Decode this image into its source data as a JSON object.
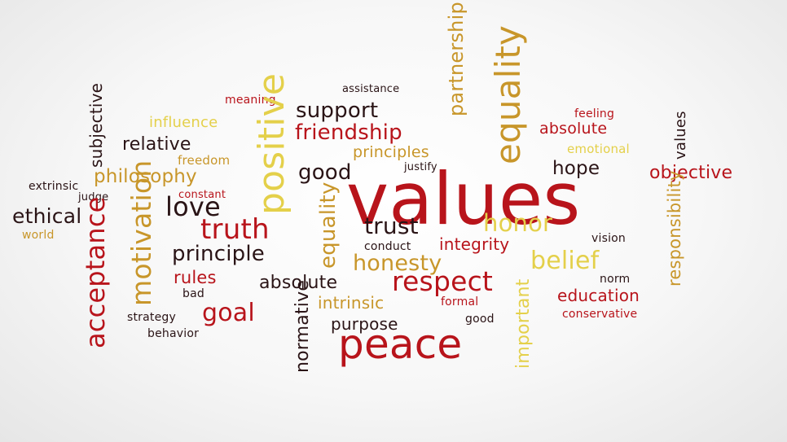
{
  "colors": {
    "dark": "#2a1416",
    "red": "#b8141b",
    "gold": "#c8962a",
    "yellow": "#e4d04a"
  },
  "words": [
    {
      "text": "values",
      "color": "red"
    },
    {
      "text": "peace",
      "color": "red"
    },
    {
      "text": "respect",
      "color": "red"
    },
    {
      "text": "truth",
      "color": "red"
    },
    {
      "text": "friendship",
      "color": "red"
    },
    {
      "text": "goal",
      "color": "red"
    },
    {
      "text": "objective",
      "color": "red"
    },
    {
      "text": "absolute",
      "color": "red"
    },
    {
      "text": "integrity",
      "color": "red"
    },
    {
      "text": "education",
      "color": "red"
    },
    {
      "text": "rules",
      "color": "red"
    },
    {
      "text": "feeling",
      "color": "red"
    },
    {
      "text": "meaning",
      "color": "red"
    },
    {
      "text": "constant",
      "color": "red"
    },
    {
      "text": "formal",
      "color": "red"
    },
    {
      "text": "conservative",
      "color": "red"
    },
    {
      "text": "acceptance",
      "color": "red"
    },
    {
      "text": "support",
      "color": "dark"
    },
    {
      "text": "relative",
      "color": "dark"
    },
    {
      "text": "good",
      "color": "dark"
    },
    {
      "text": "hope",
      "color": "dark"
    },
    {
      "text": "love",
      "color": "dark"
    },
    {
      "text": "trust",
      "color": "dark"
    },
    {
      "text": "ethical",
      "color": "dark"
    },
    {
      "text": "principle",
      "color": "dark"
    },
    {
      "text": "absolute",
      "color": "dark"
    },
    {
      "text": "purpose",
      "color": "dark"
    },
    {
      "text": "assistance",
      "color": "dark"
    },
    {
      "text": "justify",
      "color": "dark"
    },
    {
      "text": "extrinsic",
      "color": "dark"
    },
    {
      "text": "judge",
      "color": "dark"
    },
    {
      "text": "conduct",
      "color": "dark"
    },
    {
      "text": "vision",
      "color": "dark"
    },
    {
      "text": "norm",
      "color": "dark"
    },
    {
      "text": "bad",
      "color": "dark"
    },
    {
      "text": "strategy",
      "color": "dark"
    },
    {
      "text": "behavior",
      "color": "dark"
    },
    {
      "text": "good",
      "color": "dark"
    },
    {
      "text": "subjective",
      "color": "dark"
    },
    {
      "text": "normative",
      "color": "dark"
    },
    {
      "text": "values",
      "color": "dark"
    },
    {
      "text": "philosophy",
      "color": "gold"
    },
    {
      "text": "principles",
      "color": "gold"
    },
    {
      "text": "honesty",
      "color": "gold"
    },
    {
      "text": "intrinsic",
      "color": "gold"
    },
    {
      "text": "freedom",
      "color": "gold"
    },
    {
      "text": "world",
      "color": "gold"
    },
    {
      "text": "motivation",
      "color": "gold"
    },
    {
      "text": "equality",
      "color": "gold"
    },
    {
      "text": "equality",
      "color": "gold"
    },
    {
      "text": "partnership",
      "color": "gold"
    },
    {
      "text": "responsibility",
      "color": "gold"
    },
    {
      "text": "influence",
      "color": "yellow"
    },
    {
      "text": "emotional",
      "color": "yellow"
    },
    {
      "text": "honor",
      "color": "yellow"
    },
    {
      "text": "belief",
      "color": "yellow"
    },
    {
      "text": "positive",
      "color": "yellow"
    },
    {
      "text": "important",
      "color": "yellow"
    }
  ]
}
